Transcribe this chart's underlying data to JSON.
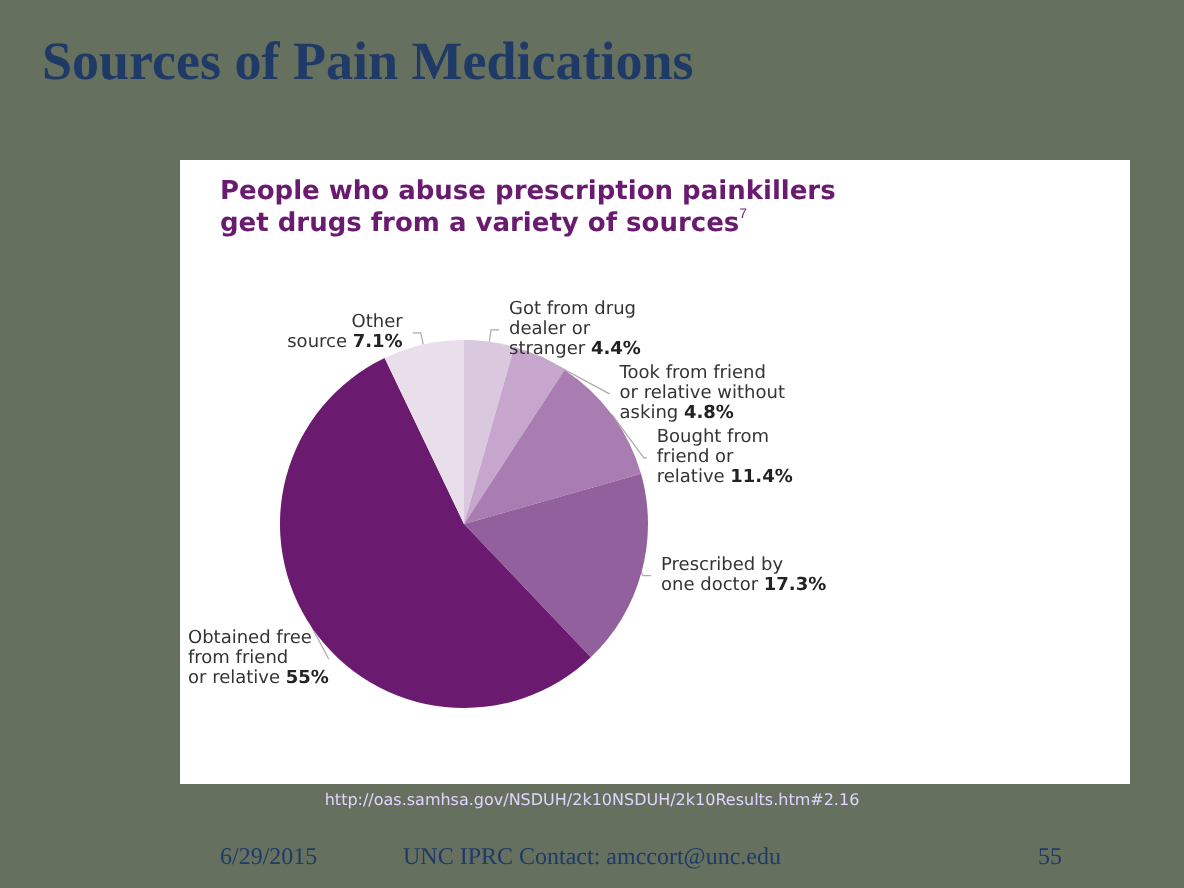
{
  "chart_data": {
    "type": "pie",
    "title": "Sources of Pain Medications",
    "subtitle": "People who abuse prescription painkillers\nget drugs from a variety of sources$^{7}$",
    "categories": [
      "Got from drug\ndealer or\nstranger",
      "Took from friend\nor relative without\nasking",
      "Bought from\nfriend or\nrelative",
      "Prescribed by\none doctor",
      "Obtained free\nfrom friend\nor relative",
      "Other\nsource"
    ],
    "values": [
      4.4,
      4.8,
      11.4,
      17.3,
      55,
      7.1
    ],
    "value_labels": [
      "4.4%",
      "4.8%",
      "11.4%",
      "17.3%",
      "55%",
      "7.1%"
    ],
    "colors": [
      "#d9c8de",
      "#c6a6cd",
      "#a97cb2",
      "#93609e",
      "#6a1b6f",
      "#e8dfea"
    ],
    "legend": false,
    "annotations": [
      "http://oas.samhsa.gov/NSDUH/2k10NSDUH/2k10Results.htm#2.16",
      "6/29/2015",
      "UNC IPRC Contact: amccort@unc.edu",
      "55"
    ]
  }
}
